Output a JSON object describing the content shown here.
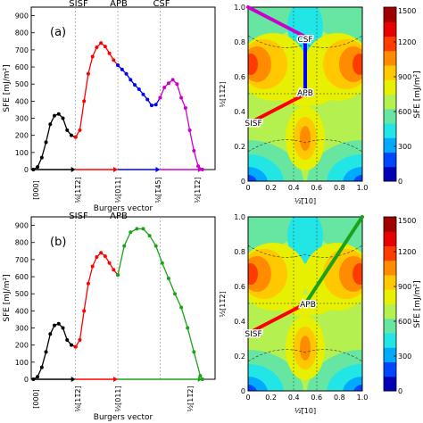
{
  "figure": {
    "panel_a": {
      "letter": "(a)",
      "top_labels": [
        "SISF",
        "APB",
        "CSF"
      ],
      "ylabel": "SFE [mJ/m²]",
      "xlabel": "Burgers vector",
      "ytick_labels": [
        "0",
        "100",
        "200",
        "300",
        "400",
        "500",
        "600",
        "700",
        "800",
        "900"
      ],
      "x_tick_labels": [
        "[000]",
        "⅙[11̅2]",
        "½[011]",
        "⅛[1̅45]",
        "½[11̅2]"
      ]
    },
    "panel_b": {
      "letter": "(b)",
      "top_labels": [
        "SISF",
        "APB"
      ],
      "ylabel": "SFE [mJ/m²]",
      "xlabel": "Burgers vector",
      "ytick_labels": [
        "0",
        "100",
        "200",
        "300",
        "400",
        "500",
        "600",
        "700",
        "800",
        "900"
      ],
      "x_tick_labels": [
        "[000]",
        "⅙[11̅2]",
        "½[011]",
        "½[11̅2]"
      ]
    },
    "map_a": {
      "ylabel": "½[11̅2]",
      "xlabel": "½[̅10]",
      "tick_labels": [
        "0",
        "0.2",
        "0.4",
        "0.6",
        "0.8",
        "1.0"
      ],
      "point_labels": [
        "CSF",
        "APB",
        "SISF"
      ]
    },
    "map_b": {
      "ylabel": "½[11̅2]",
      "xlabel": "½[̅10]",
      "tick_labels": [
        "0",
        "0.2",
        "0.4",
        "0.6",
        "0.8",
        "1.0"
      ],
      "point_labels": [
        "APB",
        "SISF"
      ]
    },
    "colorbar": {
      "label": "SFE [mJ/m²]",
      "tick_labels": [
        "0",
        "300",
        "600",
        "900",
        "1200",
        "1500"
      ]
    }
  },
  "colors": {
    "segment1": "#000000",
    "segment2": "#ff0000",
    "segment3": "#0000ff",
    "segment4": "#cc00cc",
    "segment5": "#1aa31a",
    "colormap": [
      "#0000b4",
      "#0046ff",
      "#00aaff",
      "#22e6e6",
      "#66e6a0",
      "#b4f050",
      "#e6f000",
      "#ffc800",
      "#ff8c00",
      "#ff3c00",
      "#e60000",
      "#a00000"
    ]
  },
  "chart_data": [
    {
      "type": "line",
      "panel": "a",
      "xlabel": "Burgers vector",
      "ylabel": "SFE [mJ/m²]",
      "ylim": [
        0,
        950
      ],
      "xlim": [
        -0.05,
        4.3
      ],
      "series": [
        {
          "color_key": "segment1",
          "x": [
            0,
            0.1,
            0.2,
            0.3,
            0.4,
            0.5,
            0.6,
            0.7,
            0.8,
            0.9,
            1.0
          ],
          "y": [
            0,
            15,
            70,
            160,
            265,
            315,
            325,
            300,
            230,
            200,
            190
          ]
        },
        {
          "color_key": "segment2",
          "x": [
            1.0,
            1.1,
            1.2,
            1.3,
            1.4,
            1.5,
            1.6,
            1.7,
            1.8,
            1.9,
            2.0
          ],
          "y": [
            190,
            230,
            400,
            560,
            660,
            715,
            740,
            720,
            680,
            640,
            610
          ]
        },
        {
          "color_key": "segment3",
          "x": [
            2.0,
            2.1,
            2.2,
            2.3,
            2.4,
            2.5,
            2.6,
            2.7,
            2.8,
            2.9,
            3.0
          ],
          "y": [
            610,
            585,
            560,
            525,
            495,
            470,
            440,
            410,
            375,
            380,
            420
          ]
        },
        {
          "color_key": "segment4",
          "x": [
            3.0,
            3.1,
            3.2,
            3.3,
            3.4,
            3.5,
            3.6,
            3.7,
            3.8,
            3.9,
            4.0
          ],
          "y": [
            420,
            480,
            505,
            525,
            500,
            420,
            360,
            230,
            110,
            20,
            0
          ]
        }
      ]
    },
    {
      "type": "line",
      "panel": "b",
      "xlabel": "Burgers vector",
      "ylabel": "SFE [mJ/m²]",
      "ylim": [
        0,
        950
      ],
      "xlim": [
        -0.05,
        4.3
      ],
      "series": [
        {
          "color_key": "segment1",
          "x": [
            0,
            0.1,
            0.2,
            0.3,
            0.4,
            0.5,
            0.6,
            0.7,
            0.8,
            0.9,
            1.0
          ],
          "y": [
            0,
            15,
            70,
            160,
            265,
            315,
            325,
            300,
            230,
            200,
            190
          ]
        },
        {
          "color_key": "segment2",
          "x": [
            1.0,
            1.1,
            1.2,
            1.3,
            1.4,
            1.5,
            1.6,
            1.7,
            1.8,
            1.9,
            2.0
          ],
          "y": [
            190,
            230,
            400,
            560,
            660,
            715,
            740,
            720,
            680,
            640,
            610
          ]
        },
        {
          "color_key": "segment5",
          "x": [
            2.0,
            2.15,
            2.3,
            2.45,
            2.6,
            2.75,
            2.9,
            3.05,
            3.2,
            3.35,
            3.5,
            3.65,
            3.8,
            3.95,
            4.0
          ],
          "y": [
            610,
            780,
            860,
            880,
            880,
            840,
            780,
            680,
            590,
            500,
            420,
            300,
            160,
            20,
            0
          ]
        }
      ]
    },
    {
      "type": "heatmap",
      "panel": "a-map",
      "xlabel": "½[̅10]",
      "ylabel": "½[11̅2]",
      "xlim": [
        0,
        1
      ],
      "ylim": [
        0,
        1
      ],
      "zlim": [
        0,
        1500
      ],
      "path": [
        {
          "color_key": "segment2",
          "x": [
            0.0,
            0.5
          ],
          "y": [
            0.33,
            0.5
          ]
        },
        {
          "color_key": "segment3",
          "x": [
            0.5,
            0.5
          ],
          "y": [
            0.5,
            0.83
          ]
        },
        {
          "color_key": "segment4",
          "x": [
            0.5,
            0.0
          ],
          "y": [
            0.83,
            1.0
          ]
        }
      ],
      "points": [
        {
          "label_index": 0,
          "x": 0.5,
          "y": 0.83
        },
        {
          "label_index": 1,
          "x": 0.5,
          "y": 0.5
        },
        {
          "label_index": 2,
          "x": 0.0,
          "y": 0.33
        }
      ]
    },
    {
      "type": "heatmap",
      "panel": "b-map",
      "xlabel": "½[̅10]",
      "ylabel": "½[11̅2]",
      "xlim": [
        0,
        1
      ],
      "ylim": [
        0,
        1
      ],
      "zlim": [
        0,
        1500
      ],
      "path": [
        {
          "color_key": "segment2",
          "x": [
            0.0,
            0.5
          ],
          "y": [
            0.33,
            0.5
          ]
        },
        {
          "color_key": "segment5",
          "x": [
            0.5,
            1.0
          ],
          "y": [
            0.5,
            1.0
          ]
        }
      ],
      "points": [
        {
          "label_index": 0,
          "x": 0.5,
          "y": 0.5
        },
        {
          "label_index": 1,
          "x": 0.0,
          "y": 0.33
        }
      ]
    }
  ]
}
